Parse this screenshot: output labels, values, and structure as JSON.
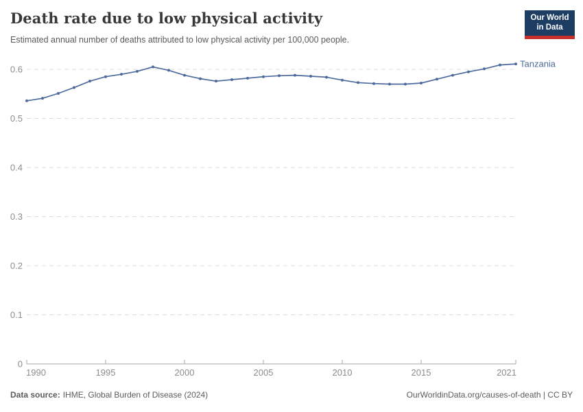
{
  "header": {
    "title": "Death rate due to low physical activity",
    "subtitle": "Estimated annual number of deaths attributed to low physical activity per 100,000 people.",
    "logo": {
      "line1": "Our World",
      "line2": "in Data"
    }
  },
  "colors": {
    "accent": "#4c6a9c",
    "logo_navy": "#1d3d63",
    "logo_red": "#c7302b",
    "grid": "#dcdcdc",
    "axis": "#a5a5a5",
    "tick_text": "#8c8c8c"
  },
  "chart_data": {
    "type": "line",
    "title": "Death rate due to low physical activity",
    "xlabel": "",
    "ylabel": "",
    "x": [
      1990,
      1991,
      1992,
      1993,
      1994,
      1995,
      1996,
      1997,
      1998,
      1999,
      2000,
      2001,
      2002,
      2003,
      2004,
      2005,
      2006,
      2007,
      2008,
      2009,
      2010,
      2011,
      2012,
      2013,
      2014,
      2015,
      2016,
      2017,
      2018,
      2019,
      2020,
      2021
    ],
    "series": [
      {
        "name": "Tanzania",
        "color": "#4c6a9c",
        "values": [
          0.536,
          0.541,
          0.551,
          0.563,
          0.576,
          0.585,
          0.59,
          0.596,
          0.605,
          0.598,
          0.588,
          0.581,
          0.576,
          0.579,
          0.582,
          0.585,
          0.587,
          0.588,
          0.586,
          0.584,
          0.578,
          0.573,
          0.571,
          0.57,
          0.57,
          0.572,
          0.58,
          0.588,
          0.595,
          0.601,
          0.609,
          0.611
        ]
      }
    ],
    "ylim": [
      0,
      0.6
    ],
    "yticks": [
      0,
      0.1,
      0.2,
      0.3,
      0.4,
      0.5,
      0.6
    ],
    "ytick_labels": [
      "0",
      "0.1",
      "0.2",
      "0.3",
      "0.4",
      "0.5",
      "0.6"
    ],
    "xticks": [
      1990,
      1995,
      2000,
      2005,
      2010,
      2015,
      2021
    ],
    "grid": "horizontal-dashed",
    "legend_position": "end-of-line-label"
  },
  "footer": {
    "source_label": "Data source:",
    "source_value": "IHME, Global Burden of Disease (2024)",
    "right": "OurWorldinData.org/causes-of-death | CC BY"
  }
}
